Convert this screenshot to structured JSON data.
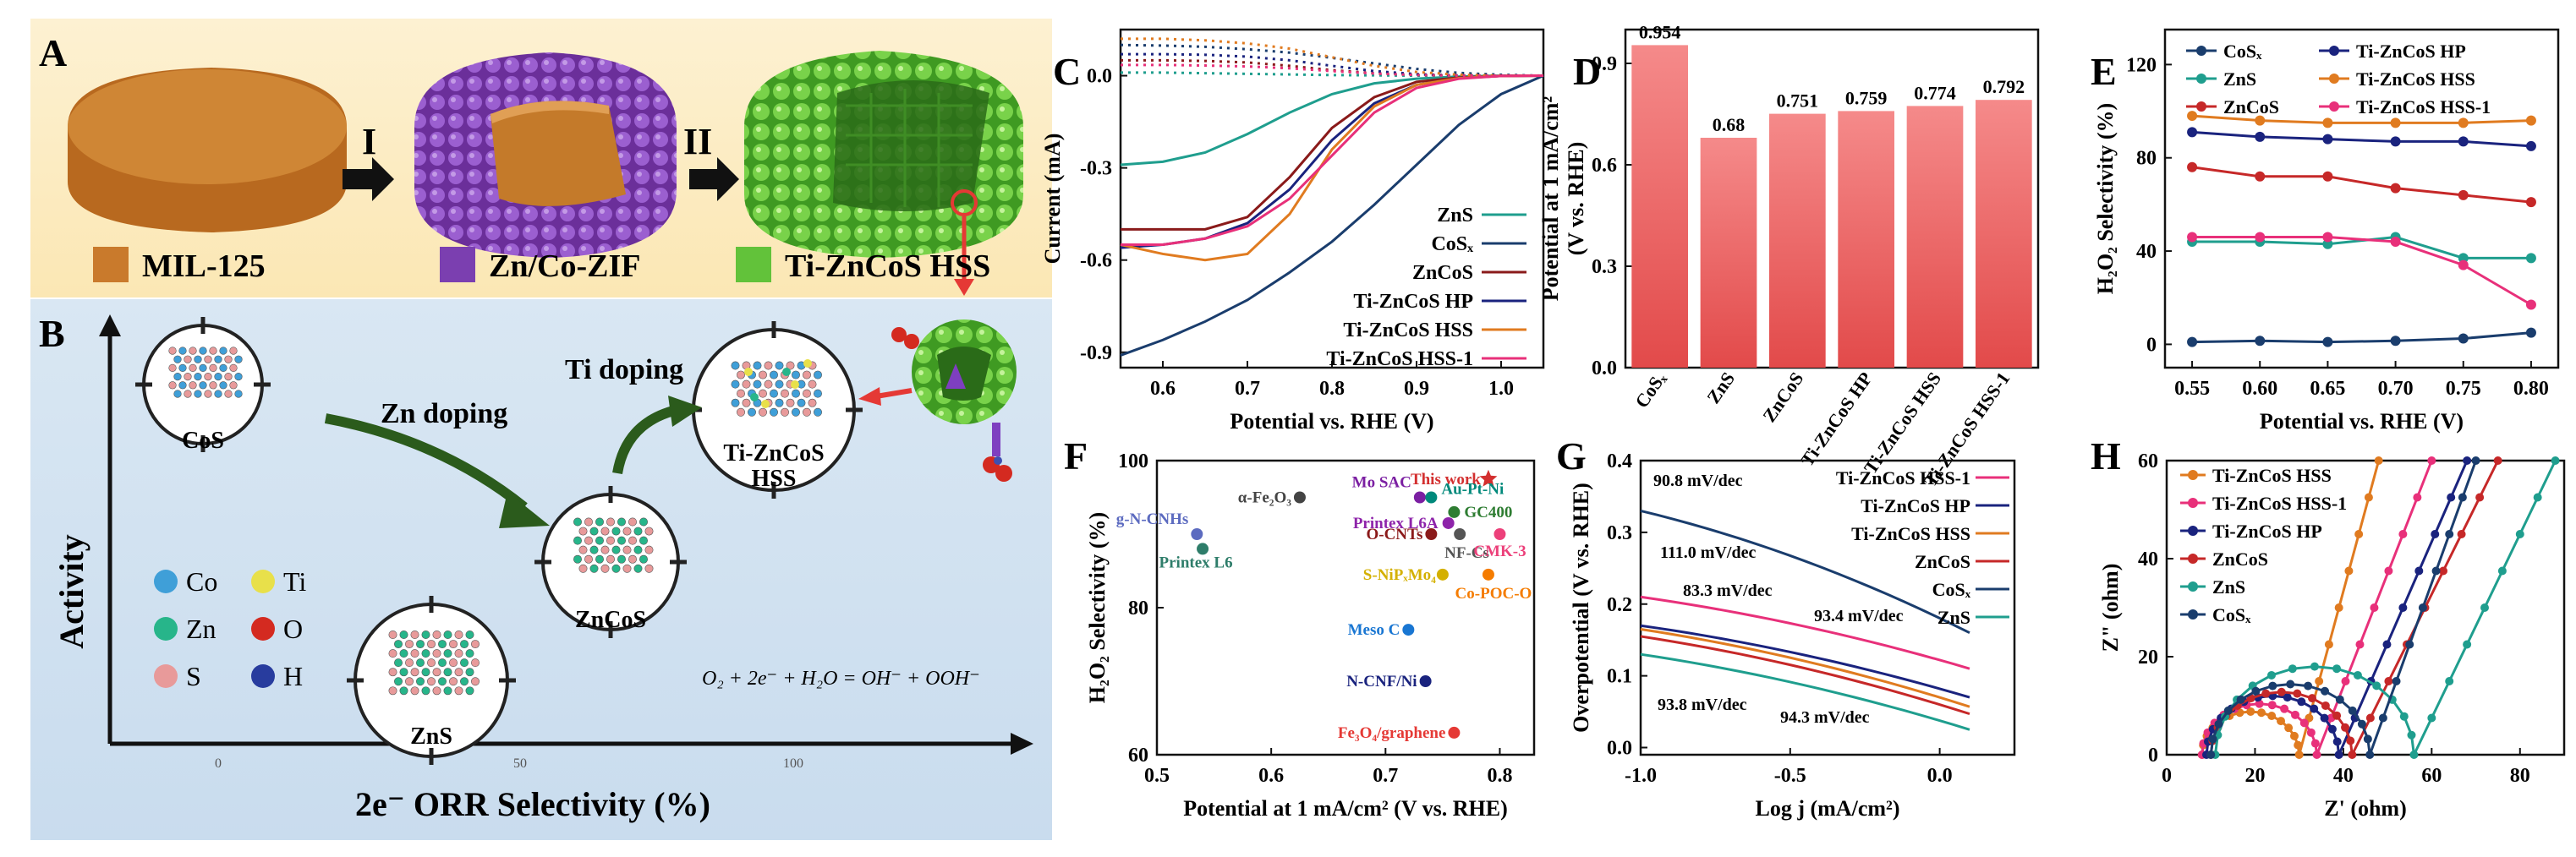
{
  "panel_letters": {
    "A": "A",
    "B": "B",
    "C": "C",
    "D": "D",
    "E": "E",
    "F": "F",
    "G": "G",
    "H": "H"
  },
  "panel_A": {
    "step1": "I",
    "step2": "II",
    "legend": [
      {
        "label": "MIL-125",
        "color": "#c97a2c"
      },
      {
        "label": "Zn/Co-ZIF",
        "color": "#7b3fb0"
      },
      {
        "label": "Ti-ZnCoS HSS",
        "color": "#62c23a"
      }
    ]
  },
  "panel_B": {
    "ylabel": "Activity",
    "xlabel": "2e⁻ ORR Selectivity (%)",
    "xticks": [
      "0",
      "50",
      "100"
    ],
    "zn_doping": "Zn doping",
    "ti_doping": "Ti doping",
    "cos": "CoS",
    "zns": "ZnS",
    "zncos": "ZnCoS",
    "tizncos_1": "Ti-ZnCoS",
    "tizncos_2": "HSS",
    "elements": [
      {
        "label": "Co",
        "color": "#3f9fd8"
      },
      {
        "label": "Ti",
        "color": "#e8e04a"
      },
      {
        "label": "Zn",
        "color": "#27b58a"
      },
      {
        "label": "O",
        "color": "#d42a20"
      },
      {
        "label": "S",
        "color": "#e89a9a"
      },
      {
        "label": "H",
        "color": "#283c9e"
      }
    ],
    "equation": "O₂ + 2e⁻ + H₂O = OH⁻ + OOH⁻"
  },
  "chart_data": [
    {
      "panel": "C",
      "type": "line",
      "xlabel": "Potential vs. RHE (V)",
      "ylabel": "Current (mA)",
      "xlim": [
        0.55,
        1.05
      ],
      "ylim": [
        -0.95,
        0.15
      ],
      "xticks": [
        "0.6",
        "0.7",
        "0.8",
        "0.9",
        "1.0"
      ],
      "yticks": [
        "0.0",
        "-0.3",
        "-0.6",
        "-0.9"
      ],
      "series": [
        {
          "name": "ZnS",
          "color": "#1f9e8e",
          "x": [
            0.55,
            0.6,
            0.65,
            0.7,
            0.75,
            0.8,
            0.85,
            0.9,
            0.95,
            1.0,
            1.05
          ],
          "y": [
            -0.29,
            -0.28,
            -0.25,
            -0.19,
            -0.12,
            -0.06,
            -0.025,
            -0.01,
            -0.003,
            0,
            0
          ],
          "ring_y": [
            0.01,
            0.01,
            0.008,
            0.006,
            0.004,
            0.002,
            0.001,
            0,
            0,
            0,
            0
          ]
        },
        {
          "name": "CoS_x",
          "color": "#1a3d6d",
          "x": [
            0.55,
            0.6,
            0.65,
            0.7,
            0.75,
            0.8,
            0.85,
            0.9,
            0.95,
            1.0,
            1.05
          ],
          "y": [
            -0.91,
            -0.86,
            -0.8,
            -0.73,
            -0.64,
            -0.54,
            -0.42,
            -0.29,
            -0.16,
            -0.06,
            0
          ],
          "ring_y": [
            0.1,
            0.098,
            0.094,
            0.086,
            0.075,
            0.058,
            0.04,
            0.022,
            0.009,
            0.003,
            0
          ]
        },
        {
          "name": "ZnCoS",
          "color": "#8a1a1a",
          "x": [
            0.55,
            0.6,
            0.65,
            0.7,
            0.75,
            0.8,
            0.85,
            0.9,
            0.95,
            1.0,
            1.05
          ],
          "y": [
            -0.5,
            -0.5,
            -0.5,
            -0.46,
            -0.33,
            -0.17,
            -0.07,
            -0.02,
            -0.006,
            -0.001,
            0
          ],
          "ring_y": [
            0.05,
            0.05,
            0.048,
            0.043,
            0.032,
            0.018,
            0.008,
            0.003,
            0.001,
            0,
            0
          ]
        },
        {
          "name": "Ti-ZnCoS HP",
          "color": "#1a237e",
          "x": [
            0.55,
            0.6,
            0.65,
            0.7,
            0.75,
            0.8,
            0.85,
            0.9,
            0.95,
            1.0,
            1.05
          ],
          "y": [
            -0.56,
            -0.55,
            -0.53,
            -0.48,
            -0.37,
            -0.21,
            -0.09,
            -0.03,
            -0.008,
            -0.001,
            0
          ],
          "ring_y": [
            0.07,
            0.07,
            0.068,
            0.062,
            0.05,
            0.032,
            0.015,
            0.005,
            0.001,
            0,
            0
          ]
        },
        {
          "name": "Ti-ZnCoS HSS",
          "color": "#e07b20",
          "x": [
            0.55,
            0.6,
            0.65,
            0.7,
            0.75,
            0.8,
            0.85,
            0.9,
            0.95,
            1.0,
            1.05
          ],
          "y": [
            -0.55,
            -0.58,
            -0.6,
            -0.58,
            -0.45,
            -0.24,
            -0.1,
            -0.03,
            -0.008,
            -0.001,
            0
          ],
          "ring_y": [
            0.12,
            0.12,
            0.115,
            0.105,
            0.088,
            0.06,
            0.032,
            0.012,
            0.003,
            0,
            0
          ]
        },
        {
          "name": "Ti-ZnCoS HSS-1",
          "color": "#e8307a",
          "x": [
            0.55,
            0.6,
            0.65,
            0.7,
            0.75,
            0.8,
            0.85,
            0.9,
            0.95,
            1.0,
            1.05
          ],
          "y": [
            -0.55,
            -0.55,
            -0.53,
            -0.49,
            -0.4,
            -0.26,
            -0.12,
            -0.04,
            -0.01,
            -0.001,
            0
          ],
          "ring_y": [
            0.035,
            0.035,
            0.033,
            0.03,
            0.024,
            0.015,
            0.007,
            0.002,
            0,
            0,
            0
          ]
        }
      ]
    },
    {
      "panel": "D",
      "type": "bar",
      "ylabel_1": "Potential at 1 mA/cm²",
      "ylabel_2": "(V vs. RHE)",
      "ylim": [
        0,
        1.0
      ],
      "yticks": [
        "0.0",
        "0.3",
        "0.6",
        "0.9"
      ],
      "categories": [
        "CoSₓ",
        "ZnS",
        "ZnCoS",
        "Ti-ZnCoS HP",
        "Ti-ZnCoS HSS",
        "Ti-ZnCoS HSS-1"
      ],
      "values": [
        0.954,
        0.68,
        0.751,
        0.759,
        0.774,
        0.792
      ],
      "value_labels": [
        "0.954",
        "0.68",
        "0.751",
        "0.759",
        "0.774",
        "0.792"
      ]
    },
    {
      "panel": "E",
      "type": "line",
      "xlabel": "Potential vs. RHE (V)",
      "ylabel": "H₂O₂ Selectivity (%)",
      "xlim": [
        0.53,
        0.82
      ],
      "ylim": [
        -10,
        135
      ],
      "xticks": [
        "0.55",
        "0.60",
        "0.65",
        "0.70",
        "0.75",
        "0.80"
      ],
      "yticks": [
        "0",
        "40",
        "80",
        "120"
      ],
      "x": [
        0.55,
        0.6,
        0.65,
        0.7,
        0.75,
        0.8
      ],
      "series": [
        {
          "name": "CoSₓ",
          "color": "#1a3d6d",
          "values": [
            1,
            1.5,
            1,
            1.5,
            2.5,
            5
          ]
        },
        {
          "name": "ZnS",
          "color": "#1f9e8e",
          "values": [
            44,
            44,
            43,
            46,
            37,
            37
          ]
        },
        {
          "name": "ZnCoS",
          "color": "#c62828",
          "values": [
            76,
            72,
            72,
            67,
            64,
            61
          ]
        },
        {
          "name": "Ti-ZnCoS HP",
          "color": "#1a237e",
          "values": [
            91,
            89,
            88,
            87,
            87,
            85
          ]
        },
        {
          "name": "Ti-ZnCoS HSS",
          "color": "#e07b20",
          "values": [
            98,
            96,
            95,
            95,
            95,
            96
          ]
        },
        {
          "name": "Ti-ZnCoS HSS-1",
          "color": "#e8307a",
          "values": [
            46,
            46,
            46,
            44,
            34,
            17
          ]
        }
      ]
    },
    {
      "panel": "F",
      "type": "scatter",
      "xlabel": "Potential at 1 mA/cm² (V vs. RHE)",
      "ylabel": "H₂O₂ Selectivity (%)",
      "xlim": [
        0.5,
        0.83
      ],
      "ylim": [
        60,
        100
      ],
      "xticks": [
        "0.5",
        "0.6",
        "0.7",
        "0.8"
      ],
      "yticks": [
        "60",
        "80",
        "100"
      ],
      "points": [
        {
          "label": "This work",
          "x": 0.79,
          "y": 97.5,
          "color": "#d32f2f",
          "marker": "star"
        },
        {
          "label": "α-Fe₂O₃",
          "x": 0.625,
          "y": 95,
          "color": "#444444"
        },
        {
          "label": "Mo SAC",
          "x": 0.73,
          "y": 95,
          "color": "#7b1fa2"
        },
        {
          "label": "Au-Pt-Ni",
          "x": 0.74,
          "y": 95,
          "color": "#00897b"
        },
        {
          "label": "g-N-CNHs",
          "x": 0.535,
          "y": 90,
          "color": "#5c6bc0"
        },
        {
          "label": "Printex L6",
          "x": 0.54,
          "y": 88,
          "color": "#2e7d6a"
        },
        {
          "label": "Printex L6A",
          "x": 0.755,
          "y": 91.5,
          "color": "#8e24aa"
        },
        {
          "label": "GC400",
          "x": 0.76,
          "y": 93,
          "color": "#2e7d32"
        },
        {
          "label": "O-CNTs",
          "x": 0.74,
          "y": 90,
          "color": "#8b1a1a"
        },
        {
          "label": "NF-Cs",
          "x": 0.765,
          "y": 90,
          "color": "#555555"
        },
        {
          "label": "CMK-3",
          "x": 0.8,
          "y": 90,
          "color": "#ec407a"
        },
        {
          "label": "S-NiPₓMo₄",
          "x": 0.75,
          "y": 84.5,
          "color": "#d4b000"
        },
        {
          "label": "Co-POC-O",
          "x": 0.79,
          "y": 84.5,
          "color": "#f57c00"
        },
        {
          "label": "Meso C",
          "x": 0.72,
          "y": 77,
          "color": "#1976d2"
        },
        {
          "label": "N-CNF/Ni",
          "x": 0.735,
          "y": 70,
          "color": "#1a237e"
        },
        {
          "label": "Fe₃O₄/graphene",
          "x": 0.76,
          "y": 63,
          "color": "#e53935"
        }
      ]
    },
    {
      "panel": "G",
      "type": "line",
      "xlabel": "Log j (mA/cm²)",
      "ylabel": "Overpotential (V vs. RHE)",
      "xlim": [
        -1.0,
        0.25
      ],
      "ylim": [
        -0.01,
        0.4
      ],
      "xticks": [
        "-1.0",
        "-0.5",
        "0.0"
      ],
      "yticks": [
        "0.0",
        "0.1",
        "0.2",
        "0.3",
        "0.4"
      ],
      "series": [
        {
          "name": "Ti-ZnCoS HSS-1",
          "color": "#e8307a",
          "x": [
            -1.0,
            0.1
          ],
          "y": [
            0.21,
            0.11
          ]
        },
        {
          "name": "Ti-ZnCoS HP",
          "color": "#1a237e",
          "x": [
            -1.0,
            0.1
          ],
          "y": [
            0.17,
            0.07
          ]
        },
        {
          "name": "Ti-ZnCoS HSS",
          "color": "#e07b20",
          "x": [
            -1.0,
            0.1
          ],
          "y": [
            0.165,
            0.057
          ]
        },
        {
          "name": "ZnCoS",
          "color": "#c62828",
          "x": [
            -1.0,
            0.1
          ],
          "y": [
            0.155,
            0.047
          ]
        },
        {
          "name": "CoSₓ",
          "color": "#1a3d6d",
          "x": [
            -1.0,
            0.1
          ],
          "y": [
            0.33,
            0.16
          ]
        },
        {
          "name": "ZnS",
          "color": "#1f9e8e",
          "x": [
            -1.0,
            0.1
          ],
          "y": [
            0.13,
            0.025
          ]
        }
      ],
      "annotations": [
        "90.8 mV/dec",
        "111.0 mV/dec",
        "83.3 mV/dec",
        "93.4 mV/dec",
        "93.8 mV/dec",
        "94.3 mV/dec"
      ]
    },
    {
      "panel": "H",
      "type": "scatter",
      "xlabel": "Z' (ohm)",
      "ylabel": "Z\" (ohm)",
      "xlim": [
        0,
        90
      ],
      "ylim": [
        0,
        60
      ],
      "xticks": [
        "0",
        "20",
        "40",
        "60",
        "80"
      ],
      "yticks": [
        "0",
        "20",
        "40",
        "60"
      ],
      "series": [
        {
          "name": "Ti-ZnCoS HSS",
          "color": "#e07b20",
          "x0": 8,
          "x1": 30,
          "tail_end": [
            48,
            60
          ]
        },
        {
          "name": "Ti-ZnCoS HSS-1",
          "color": "#e8307a",
          "x0": 8,
          "x1": 34,
          "tail_end": [
            60,
            60
          ]
        },
        {
          "name": "Ti-ZnCoS HP",
          "color": "#1a237e",
          "x0": 9,
          "x1": 39,
          "tail_end": [
            68,
            60
          ]
        },
        {
          "name": "ZnCoS",
          "color": "#c62828",
          "x0": 10,
          "x1": 42,
          "tail_end": [
            75,
            60
          ]
        },
        {
          "name": "ZnS",
          "color": "#1f9e8e",
          "x0": 11,
          "x1": 56,
          "tail_end": [
            88,
            60
          ]
        },
        {
          "name": "CoSₓ",
          "color": "#1a3d6d",
          "x0": 10,
          "x1": 46,
          "tail_end": [
            70,
            60
          ]
        }
      ]
    }
  ]
}
